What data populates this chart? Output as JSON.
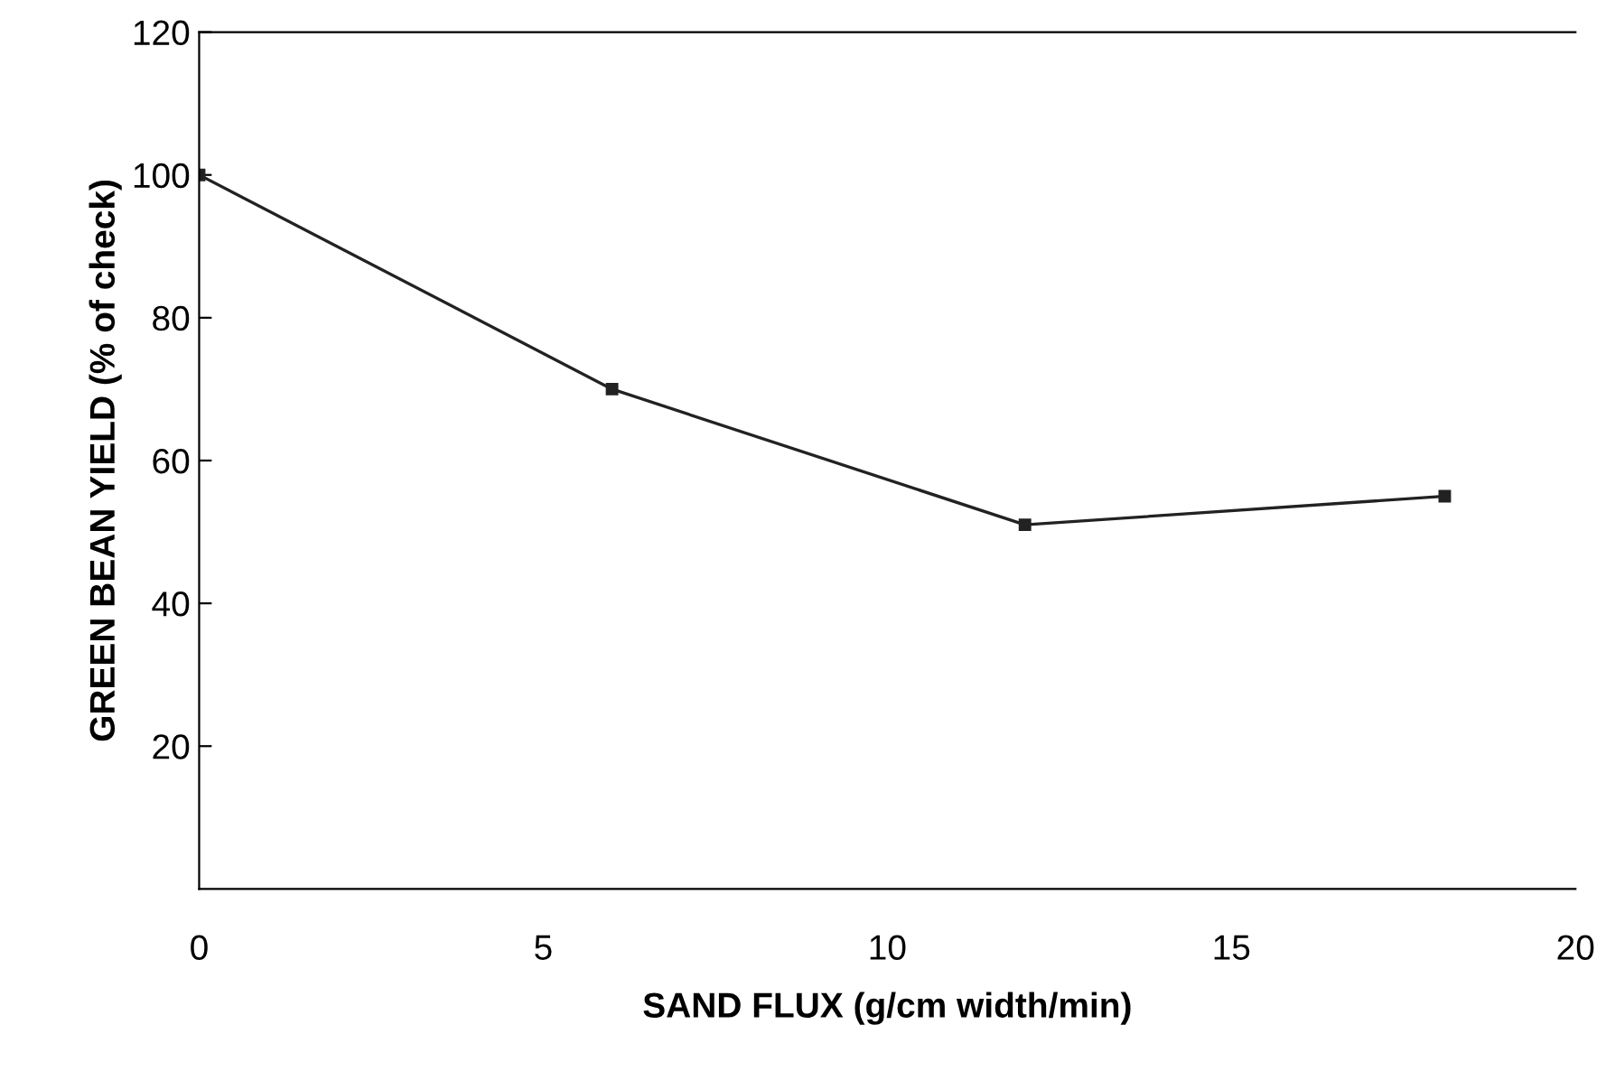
{
  "chart_data": {
    "type": "line",
    "xlabel": "SAND FLUX (g/cm width/min)",
    "ylabel": "GREEN BEAN YIELD (% of check)",
    "x": [
      0,
      6.0,
      12.0,
      18.1
    ],
    "series": [
      {
        "color": "#222222",
        "values": [
          100,
          70,
          51,
          55
        ]
      }
    ],
    "xlim": [
      0,
      20
    ],
    "xticks": [
      0,
      5,
      10,
      15,
      20
    ],
    "ylim": [
      0,
      120
    ],
    "yticks": [
      20,
      40,
      60,
      80,
      100,
      120
    ],
    "marker": "square",
    "line_style": "solid",
    "grid": false,
    "legend": false
  }
}
